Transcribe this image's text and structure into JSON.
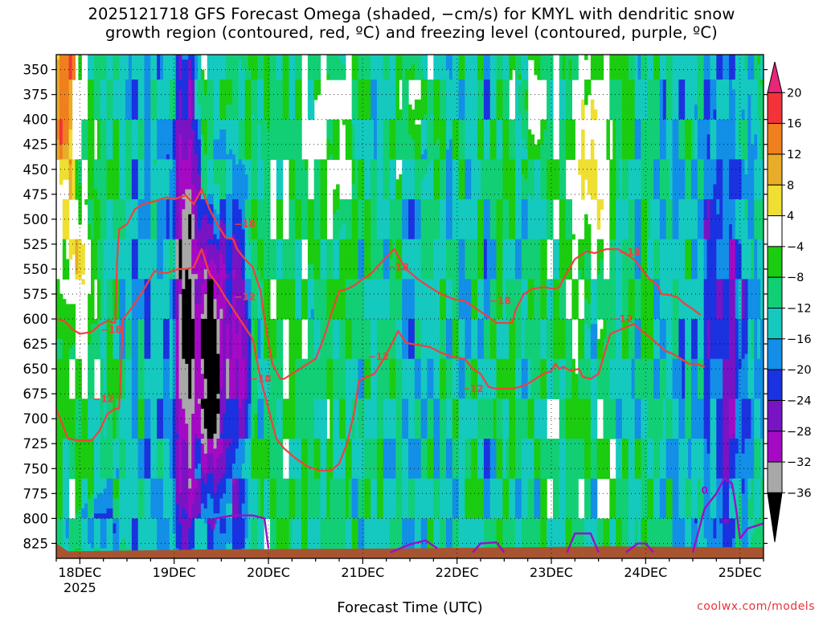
{
  "title": {
    "line1": "2025121718 GFS Forecast Omega (shaded, −cm/s) for KMYL with dendritic snow",
    "line2": "growth region (contoured, red, ºC) and freezing level (contoured, purple, ºC)"
  },
  "credit": "coolwx.com/models",
  "chart_data": {
    "type": "heatmap",
    "xlabel": "Forecast Time (UTC)",
    "ylabel": "",
    "x_ticks": [
      {
        "label": "18DEC",
        "sub": "2025",
        "hour": 6
      },
      {
        "label": "19DEC",
        "sub": "",
        "hour": 30
      },
      {
        "label": "20DEC",
        "sub": "",
        "hour": 54
      },
      {
        "label": "21DEC",
        "sub": "",
        "hour": 78
      },
      {
        "label": "22DEC",
        "sub": "",
        "hour": 102
      },
      {
        "label": "23DEC",
        "sub": "",
        "hour": 126
      },
      {
        "label": "24DEC",
        "sub": "",
        "hour": 150
      },
      {
        "label": "25DEC",
        "sub": "",
        "hour": 174
      }
    ],
    "xlim": [
      0,
      180
    ],
    "ylim": [
      840,
      335
    ],
    "y_ticks": [
      350,
      375,
      400,
      425,
      450,
      475,
      500,
      525,
      550,
      575,
      600,
      625,
      650,
      675,
      700,
      725,
      750,
      775,
      800,
      825
    ],
    "grid": true,
    "colorbar": {
      "levels": [
        "20",
        "16",
        "12",
        "8",
        "4",
        "−4",
        "−8",
        "−12",
        "−16",
        "−20",
        "−24",
        "−28",
        "−32",
        "−36"
      ],
      "colors": [
        "#e8267a",
        "#f2333a",
        "#f07f1e",
        "#e8ad28",
        "#eedf32",
        "#ffffff",
        "#1bcc10",
        "#12cf75",
        "#15c9bf",
        "#138fe7",
        "#1b32e0",
        "#7814c4",
        "#a40ac4",
        "#a8a8a8",
        "#000000"
      ]
    },
    "dgz_contours": [
      {
        "label": "−18",
        "points": [
          [
            0,
            600
          ],
          [
            2,
            602
          ],
          [
            4,
            610
          ],
          [
            6,
            615
          ],
          [
            9,
            613
          ],
          [
            11,
            606
          ],
          [
            13,
            602
          ],
          [
            15,
            604
          ],
          [
            15.5,
            540
          ],
          [
            16,
            510
          ],
          [
            18,
            505
          ],
          [
            20,
            490
          ],
          [
            22,
            485
          ],
          [
            25,
            482
          ],
          [
            28,
            478
          ],
          [
            30,
            480
          ],
          [
            33,
            476
          ],
          [
            35,
            485
          ],
          [
            37,
            470
          ],
          [
            39,
            490
          ],
          [
            41,
            505
          ],
          [
            43,
            518
          ],
          [
            45,
            520
          ],
          [
            46,
            530
          ],
          [
            48,
            540
          ],
          [
            50,
            548
          ],
          [
            51,
            560
          ],
          [
            52,
            572
          ],
          [
            53,
            600
          ],
          [
            55,
            645
          ],
          [
            57,
            660
          ],
          [
            58,
            660
          ],
          [
            62,
            650
          ],
          [
            64,
            645
          ],
          [
            66,
            640
          ],
          [
            68,
            620
          ],
          [
            70,
            595
          ],
          [
            72,
            572
          ],
          [
            74,
            570
          ],
          [
            76,
            566
          ],
          [
            78,
            560
          ],
          [
            80,
            555
          ],
          [
            83,
            542
          ],
          [
            86,
            530
          ],
          [
            89,
            550
          ],
          [
            92,
            560
          ],
          [
            95,
            568
          ],
          [
            98,
            575
          ],
          [
            101,
            580
          ],
          [
            104,
            582
          ],
          [
            107,
            590
          ],
          [
            110,
            598
          ],
          [
            112,
            604
          ],
          [
            114,
            604
          ],
          [
            116,
            604
          ],
          [
            117,
            590
          ],
          [
            119,
            575
          ],
          [
            121,
            570
          ],
          [
            124,
            568
          ],
          [
            127,
            570
          ],
          [
            128,
            568
          ],
          [
            129,
            560
          ],
          [
            132,
            540
          ],
          [
            135,
            532
          ],
          [
            137,
            534
          ],
          [
            140,
            530
          ],
          [
            143,
            530
          ],
          [
            145,
            535
          ],
          [
            147,
            540
          ],
          [
            149,
            550
          ],
          [
            151,
            560
          ],
          [
            153,
            566
          ],
          [
            154,
            575
          ],
          [
            156,
            576
          ],
          [
            158,
            578
          ],
          [
            160,
            585
          ],
          [
            162,
            590
          ],
          [
            164,
            596
          ]
        ],
        "labels": [
          [
            48,
            505
          ],
          [
            14,
            611
          ],
          [
            52,
            660
          ],
          [
            87,
            548
          ],
          [
            113,
            582
          ],
          [
            146,
            533
          ]
        ]
      },
      {
        "label": "−12",
        "points": [
          [
            0,
            690
          ],
          [
            3,
            720
          ],
          [
            6,
            722
          ],
          [
            9,
            722
          ],
          [
            11,
            712
          ],
          [
            13,
            695
          ],
          [
            15,
            690
          ],
          [
            16,
            690
          ],
          [
            17,
            600
          ],
          [
            19,
            590
          ],
          [
            22,
            572
          ],
          [
            25,
            552
          ],
          [
            28,
            554
          ],
          [
            31,
            550
          ],
          [
            33,
            550
          ],
          [
            35,
            548
          ],
          [
            37,
            530
          ],
          [
            39,
            555
          ],
          [
            41,
            565
          ],
          [
            43,
            578
          ],
          [
            45,
            590
          ],
          [
            48,
            608
          ],
          [
            50,
            620
          ],
          [
            52,
            660
          ],
          [
            54,
            690
          ],
          [
            56,
            720
          ],
          [
            58,
            730
          ],
          [
            61,
            740
          ],
          [
            64,
            748
          ],
          [
            67,
            752
          ],
          [
            70,
            752
          ],
          [
            72,
            745
          ],
          [
            74,
            725
          ],
          [
            76,
            690
          ],
          [
            77,
            662
          ],
          [
            79,
            658
          ],
          [
            81,
            655
          ],
          [
            83,
            642
          ],
          [
            85,
            628
          ],
          [
            87,
            612
          ],
          [
            89,
            624
          ],
          [
            92,
            626
          ],
          [
            95,
            628
          ],
          [
            98,
            634
          ],
          [
            101,
            638
          ],
          [
            104,
            640
          ],
          [
            106,
            650
          ],
          [
            108,
            655
          ],
          [
            110,
            668
          ],
          [
            112,
            670
          ],
          [
            114,
            670
          ],
          [
            116,
            670
          ],
          [
            118,
            668
          ],
          [
            120,
            665
          ],
          [
            122,
            660
          ],
          [
            124,
            655
          ],
          [
            126,
            652
          ],
          [
            127,
            645
          ],
          [
            128,
            650
          ],
          [
            129,
            648
          ],
          [
            131,
            652
          ],
          [
            133,
            650
          ],
          [
            134,
            658
          ],
          [
            136,
            660
          ],
          [
            138,
            655
          ],
          [
            141,
            615
          ],
          [
            144,
            610
          ],
          [
            147,
            605
          ],
          [
            149,
            612
          ],
          [
            151,
            618
          ],
          [
            153,
            625
          ],
          [
            155,
            632
          ],
          [
            157,
            635
          ],
          [
            159,
            640
          ],
          [
            161,
            645
          ],
          [
            163,
            645
          ],
          [
            165,
            648
          ]
        ],
        "labels": [
          [
            48,
            578
          ],
          [
            12,
            680
          ],
          [
            82,
            638
          ],
          [
            106,
            670
          ],
          [
            144,
            600
          ]
        ]
      }
    ],
    "freezing_contour": {
      "label": "0",
      "segments": [
        [
          [
            40,
            812
          ],
          [
            40.5,
            800
          ],
          [
            45,
            797
          ],
          [
            50,
            797
          ],
          [
            53,
            800
          ],
          [
            54,
            830
          ]
        ],
        [
          [
            85,
            834
          ],
          [
            90,
            826
          ],
          [
            94,
            822
          ],
          [
            97,
            830
          ]
        ],
        [
          [
            106,
            834
          ],
          [
            108,
            825
          ],
          [
            112,
            824
          ],
          [
            114,
            834
          ]
        ],
        [
          [
            130,
            834
          ],
          [
            132,
            815
          ],
          [
            136,
            815
          ],
          [
            138,
            834
          ]
        ],
        [
          [
            145,
            834
          ],
          [
            148,
            825
          ],
          [
            150,
            825
          ],
          [
            152,
            834
          ]
        ],
        [
          [
            162,
            834
          ],
          [
            165,
            790
          ],
          [
            168,
            775
          ],
          [
            170,
            760
          ],
          [
            172,
            765
          ],
          [
            173,
            790
          ],
          [
            174,
            820
          ],
          [
            176,
            810
          ],
          [
            180,
            805
          ]
        ]
      ],
      "labels": [
        [
          165,
          772
        ]
      ]
    },
    "terrain_color": "#a85430",
    "color_fields_note": "Shaded omega values (−cm/s): strong ascent (−36 to −24) centered near 19DEC 12Z from 475 to 800 hPa; weak to moderate ascent over most of the domain; descent (4 to 20) near 18DEC 00Z aloft and near 23DEC–24DEC upper levels"
  }
}
